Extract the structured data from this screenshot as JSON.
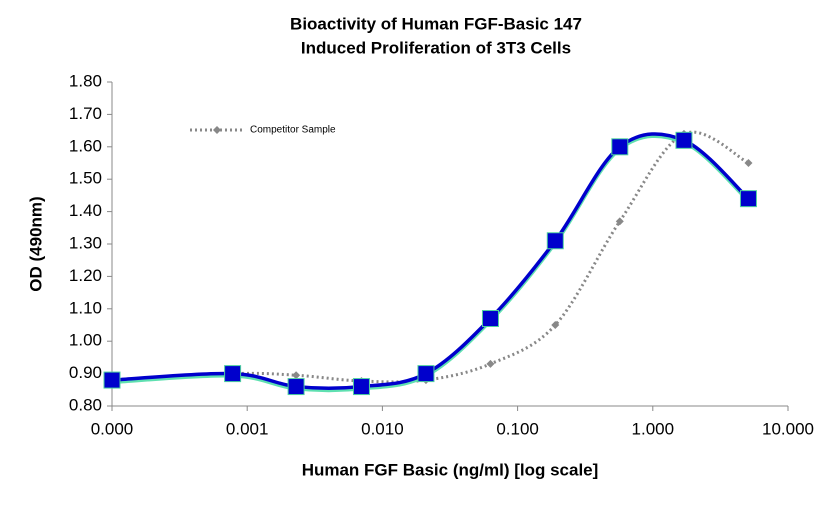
{
  "chart_data": {
    "type": "line",
    "title": [
      "Bioactivity of Human FGF-Basic 147",
      "Induced Proliferation of 3T3 Cells"
    ],
    "x_label": "Human FGF Basic (ng/ml) [log scale]",
    "y_label": "OD (490nm)",
    "x": [
      0.0001,
      0.00078,
      0.0023,
      0.007,
      0.021,
      0.063,
      0.19,
      0.57,
      1.7,
      5.1
    ],
    "xscale": "log",
    "xlim": [
      0.0001,
      10
    ],
    "xticks": [
      {
        "value": 0.0001,
        "label": "0.000"
      },
      {
        "value": 0.001,
        "label": "0.001"
      },
      {
        "value": 0.01,
        "label": "0.010"
      },
      {
        "value": 0.1,
        "label": "0.100"
      },
      {
        "value": 1,
        "label": "1.000"
      },
      {
        "value": 10,
        "label": "10.000"
      }
    ],
    "ylim": [
      0.8,
      1.8
    ],
    "yticks": [
      {
        "value": 0.8,
        "label": "0.80"
      },
      {
        "value": 0.9,
        "label": "0.90"
      },
      {
        "value": 1,
        "label": "1.00"
      },
      {
        "value": 1.1,
        "label": "1.10"
      },
      {
        "value": 1.2,
        "label": "1.20"
      },
      {
        "value": 1.3,
        "label": "1.30"
      },
      {
        "value": 1.4,
        "label": "1.40"
      },
      {
        "value": 1.5,
        "label": "1.50"
      },
      {
        "value": 1.6,
        "label": "1.60"
      },
      {
        "value": 1.7,
        "label": "1.70"
      },
      {
        "value": 1.8,
        "label": "1.80"
      }
    ],
    "series": [
      {
        "color": "#0000cc",
        "marker": "square",
        "style": "solid",
        "values": [
          0.88,
          0.9,
          0.86,
          0.86,
          0.9,
          1.07,
          1.31,
          1.6,
          1.62,
          1.44
        ]
      },
      {
        "name": "Competitor Sample",
        "color": "#888888",
        "marker": "diamond",
        "style": "dotted",
        "values": [
          0.88,
          0.9,
          0.895,
          0.877,
          0.88,
          0.93,
          1.05,
          1.37,
          1.64,
          1.55
        ]
      }
    ]
  }
}
